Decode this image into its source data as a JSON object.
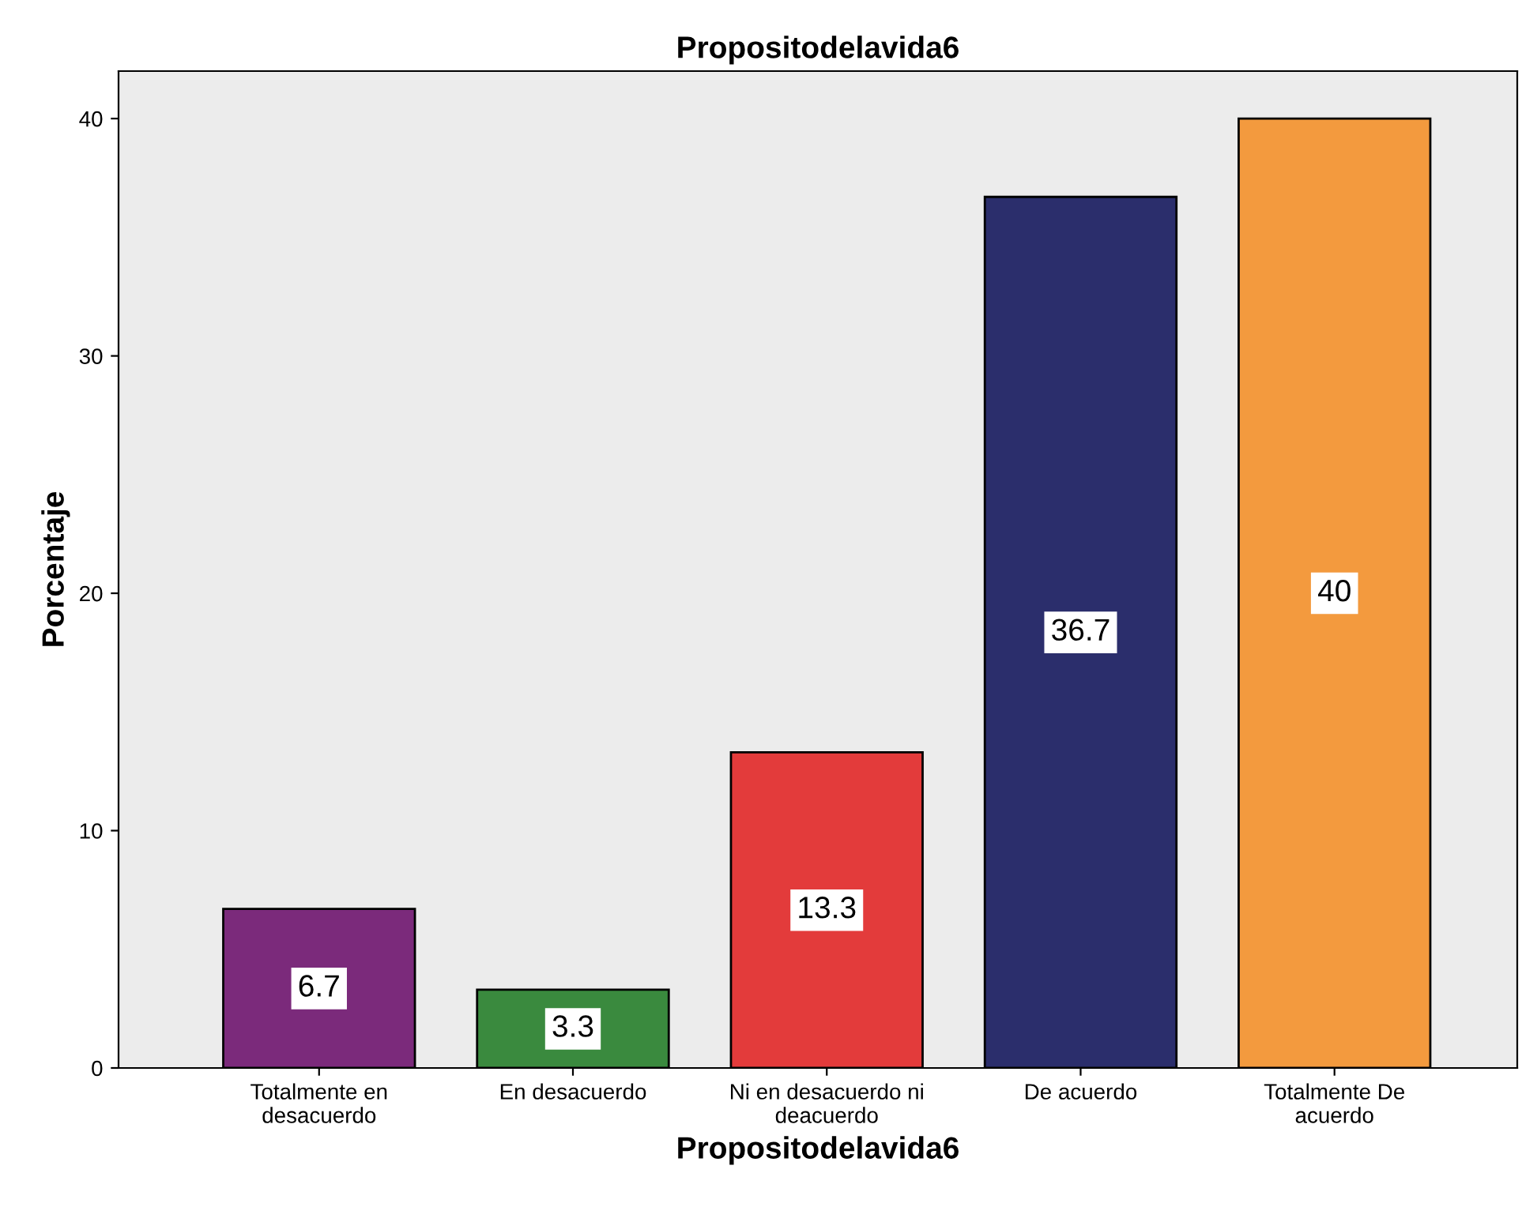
{
  "chart_data": {
    "type": "bar",
    "title": "Propositodelavida6",
    "xlabel": "Propositodelavida6",
    "ylabel": "Porcentaje",
    "categories": [
      "Totalmente en\ndesacuerdo",
      "En desacuerdo",
      "Ni en desacuerdo ni\ndeacuerdo",
      "De acuerdo",
      "Totalmente De\nacuerdo"
    ],
    "values": [
      6.7,
      3.3,
      13.3,
      36.7,
      40
    ],
    "colors": [
      "#7b2a7b",
      "#3a8a3e",
      "#e33b3b",
      "#2b2e6c",
      "#f39a3e"
    ],
    "ylim": [
      0,
      42
    ],
    "yticks": [
      0,
      10,
      20,
      30,
      40
    ],
    "grid": false,
    "data_labels": true
  }
}
